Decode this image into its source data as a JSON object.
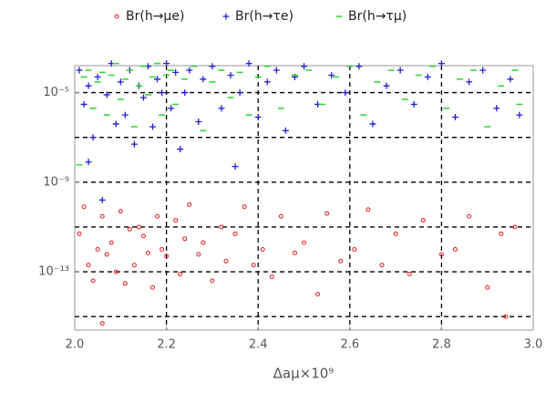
{
  "chart_data": {
    "type": "scatter",
    "x_label": "Δaμ×10⁹",
    "xlim": [
      2.0,
      3.0
    ],
    "xticks": [
      {
        "value": 2.0,
        "label": "2.0"
      },
      {
        "value": 2.2,
        "label": "2.2"
      },
      {
        "value": 2.4,
        "label": "2.4"
      },
      {
        "value": 2.6,
        "label": "2.6"
      },
      {
        "value": 2.8,
        "label": "2.8"
      },
      {
        "value": 3.0,
        "label": "3.0"
      }
    ],
    "x_grid": [
      2.2,
      2.4,
      2.6,
      2.8
    ],
    "ylim": [
      2.5e-16,
      0.00016
    ],
    "y_log": true,
    "yticks": [
      {
        "value": 1e-05,
        "label": "10⁻⁵"
      },
      {
        "value": 1e-09,
        "label": "10⁻⁹"
      },
      {
        "value": 1e-13,
        "label": "10⁻¹³"
      }
    ],
    "y_grid": [
      1e-05,
      1e-07,
      1e-09,
      1e-11,
      1e-13,
      1e-15
    ],
    "legend": "top",
    "series": [
      {
        "name": "Br(h→μe)",
        "color": "#e31a1c",
        "marker": "circle",
        "x": [
          2.01,
          2.03,
          2.02,
          2.05,
          2.04,
          2.06,
          2.07,
          2.08,
          2.09,
          2.1,
          2.11,
          2.12,
          2.13,
          2.14,
          2.15,
          2.16,
          2.17,
          2.18,
          2.19,
          2.2,
          2.22,
          2.23,
          2.24,
          2.25,
          2.27,
          2.28,
          2.3,
          2.32,
          2.33,
          2.35,
          2.37,
          2.39,
          2.41,
          2.43,
          2.45,
          2.48,
          2.5,
          2.53,
          2.55,
          2.58,
          2.61,
          2.64,
          2.67,
          2.7,
          2.73,
          2.76,
          2.8,
          2.83,
          2.86,
          2.9,
          2.93,
          2.96,
          2.94,
          2.06
        ],
        "values": [
          5e-12,
          2e-13,
          8e-11,
          1e-12,
          4e-14,
          3e-11,
          6e-13,
          2e-12,
          1e-13,
          5e-11,
          3e-14,
          8e-12,
          2e-13,
          1e-11,
          4e-12,
          7e-13,
          2e-14,
          3e-11,
          1e-12,
          5e-13,
          2e-11,
          8e-14,
          3e-12,
          1e-10,
          6e-13,
          2e-12,
          4e-14,
          1e-11,
          3e-13,
          5e-12,
          8e-11,
          2e-13,
          1e-12,
          6e-14,
          3e-11,
          7e-13,
          2e-12,
          1e-14,
          4e-11,
          3e-13,
          1e-12,
          6e-11,
          2e-13,
          5e-12,
          8e-14,
          2e-11,
          6e-13,
          1e-12,
          3e-11,
          2e-14,
          5e-12,
          1e-11,
          1e-15,
          5e-16
        ]
      },
      {
        "name": "Br(h→τe)",
        "color": "#1f1fd6",
        "marker": "plus",
        "x": [
          2.01,
          2.02,
          2.03,
          2.04,
          2.05,
          2.06,
          2.07,
          2.08,
          2.09,
          2.1,
          2.11,
          2.12,
          2.13,
          2.14,
          2.15,
          2.16,
          2.17,
          2.18,
          2.19,
          2.2,
          2.21,
          2.22,
          2.23,
          2.24,
          2.25,
          2.27,
          2.28,
          2.3,
          2.32,
          2.34,
          2.36,
          2.38,
          2.4,
          2.42,
          2.44,
          2.46,
          2.48,
          2.5,
          2.53,
          2.56,
          2.59,
          2.62,
          2.65,
          2.68,
          2.71,
          2.74,
          2.77,
          2.8,
          2.83,
          2.86,
          2.89,
          2.92,
          2.95,
          2.97,
          2.03,
          2.35
        ],
        "values": [
          0.0001,
          3e-06,
          2e-05,
          1e-07,
          5e-05,
          1.6e-10,
          8e-06,
          0.0002,
          4e-07,
          3e-05,
          1e-06,
          0.0001,
          5e-08,
          2e-05,
          6e-06,
          0.00015,
          3e-07,
          4e-05,
          1e-05,
          0.0002,
          2e-06,
          8e-05,
          3e-08,
          1e-05,
          0.0001,
          5e-07,
          4e-05,
          0.00015,
          2e-06,
          6e-05,
          1e-05,
          0.0002,
          8e-07,
          3e-05,
          0.0001,
          2e-07,
          5e-05,
          0.00015,
          3e-06,
          6e-05,
          1e-05,
          0.00015,
          4e-07,
          2e-05,
          0.0001,
          3e-06,
          5e-05,
          0.0002,
          8e-07,
          3e-05,
          0.0001,
          2e-06,
          4e-05,
          1e-06,
          8e-09,
          5e-09
        ]
      },
      {
        "name": "Br(h→τμ)",
        "color": "#2fd62f",
        "marker": "dash",
        "x": [
          2.01,
          2.02,
          2.03,
          2.04,
          2.05,
          2.06,
          2.07,
          2.08,
          2.09,
          2.1,
          2.11,
          2.12,
          2.13,
          2.14,
          2.15,
          2.16,
          2.17,
          2.18,
          2.19,
          2.2,
          2.21,
          2.22,
          2.24,
          2.26,
          2.28,
          2.3,
          2.32,
          2.34,
          2.36,
          2.38,
          2.4,
          2.42,
          2.45,
          2.48,
          2.51,
          2.54,
          2.57,
          2.6,
          2.63,
          2.66,
          2.69,
          2.72,
          2.75,
          2.78,
          2.81,
          2.84,
          2.87,
          2.9,
          2.93,
          2.96,
          2.97
        ],
        "values": [
          6e-09,
          5e-05,
          0.0001,
          2e-06,
          3e-05,
          8e-05,
          1e-06,
          6e-05,
          0.0002,
          5e-06,
          4e-05,
          0.0001,
          3e-07,
          2e-05,
          0.00015,
          8e-06,
          5e-05,
          0.0002,
          1e-06,
          6e-05,
          0.0001,
          3e-06,
          4e-05,
          0.00015,
          2e-07,
          3e-05,
          0.0001,
          6e-06,
          8e-05,
          1e-06,
          5e-05,
          0.00015,
          2e-06,
          6e-05,
          0.0001,
          3e-06,
          5e-05,
          0.00015,
          1e-06,
          3e-05,
          0.0001,
          5e-06,
          6e-05,
          0.00015,
          2e-06,
          4e-05,
          0.0001,
          3e-07,
          2e-05,
          0.0001,
          3e-06
        ]
      }
    ]
  }
}
